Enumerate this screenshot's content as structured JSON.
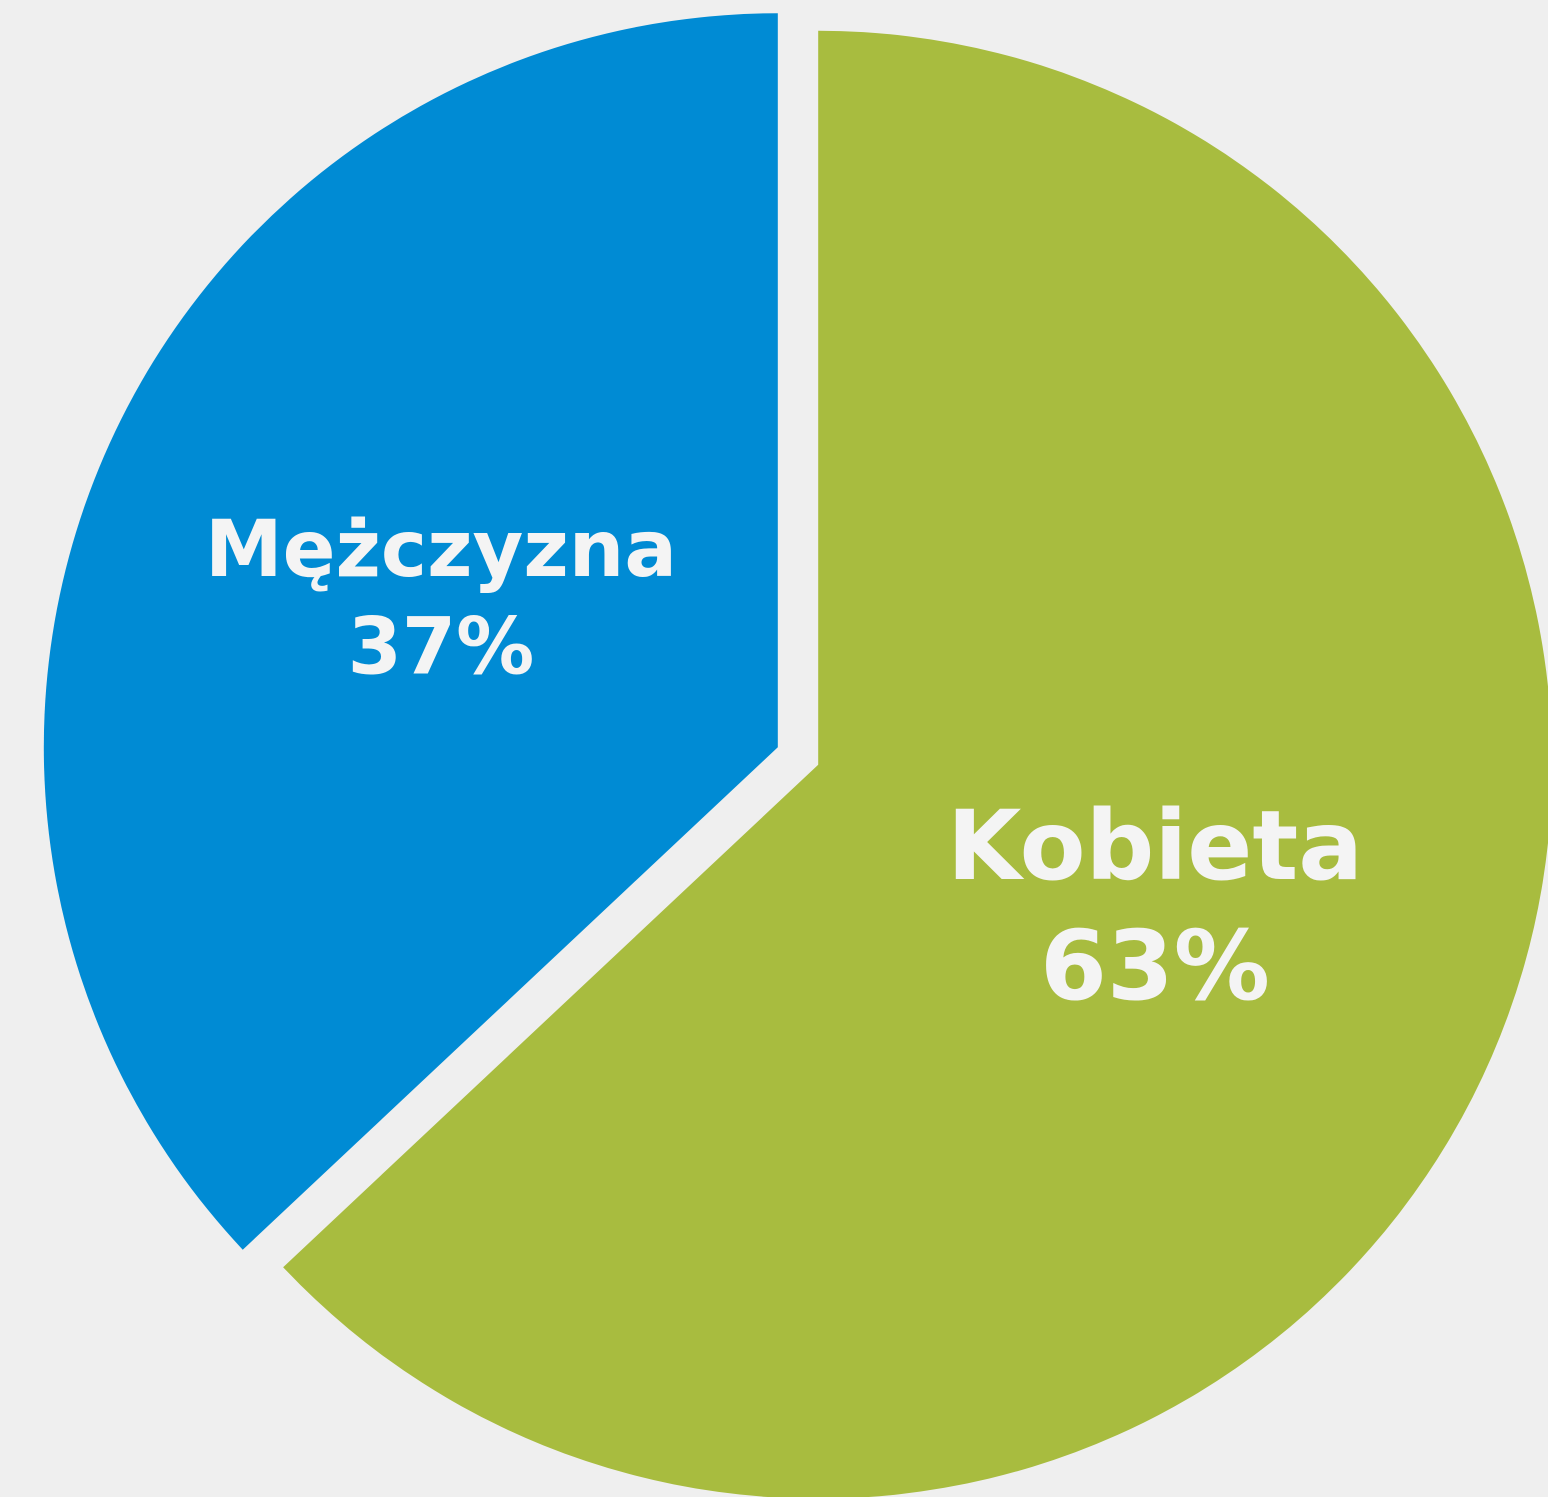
{
  "chart_data": {
    "type": "pie",
    "categories": [
      "Kobieta",
      "Mężczyzna"
    ],
    "values": [
      63,
      37
    ],
    "value_labels": [
      "63%",
      "37%"
    ],
    "colors": [
      "#a8bc3f",
      "#008bd4"
    ]
  }
}
